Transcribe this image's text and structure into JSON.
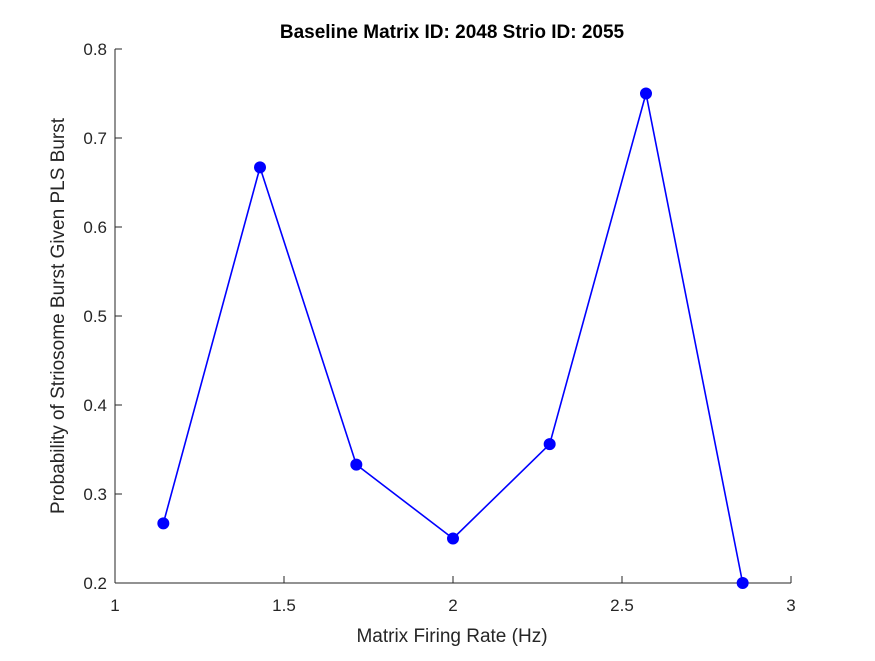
{
  "chart_data": {
    "type": "line",
    "title": "Baseline Matrix ID: 2048 Strio ID: 2055",
    "xlabel": "Matrix Firing Rate (Hz)",
    "ylabel": "Probability of Striosome Burst Given PLS Burst",
    "xlim": [
      1,
      3
    ],
    "ylim": [
      0.2,
      0.8
    ],
    "xticks": [
      1,
      1.5,
      2,
      2.5,
      3
    ],
    "xtick_labels": [
      "1",
      "1.5",
      "2",
      "2.5",
      "3"
    ],
    "yticks": [
      0.2,
      0.3,
      0.4,
      0.5,
      0.6,
      0.7,
      0.8
    ],
    "ytick_labels": [
      "0.2",
      "0.3",
      "0.4",
      "0.5",
      "0.6",
      "0.7",
      "0.8"
    ],
    "grid": false,
    "color": "#0000ff",
    "series": [
      {
        "x": [
          1.143,
          1.429,
          1.714,
          2.0,
          2.286,
          2.571,
          2.857
        ],
        "y": [
          0.267,
          0.667,
          0.333,
          0.25,
          0.356,
          0.75,
          0.2
        ]
      }
    ]
  }
}
